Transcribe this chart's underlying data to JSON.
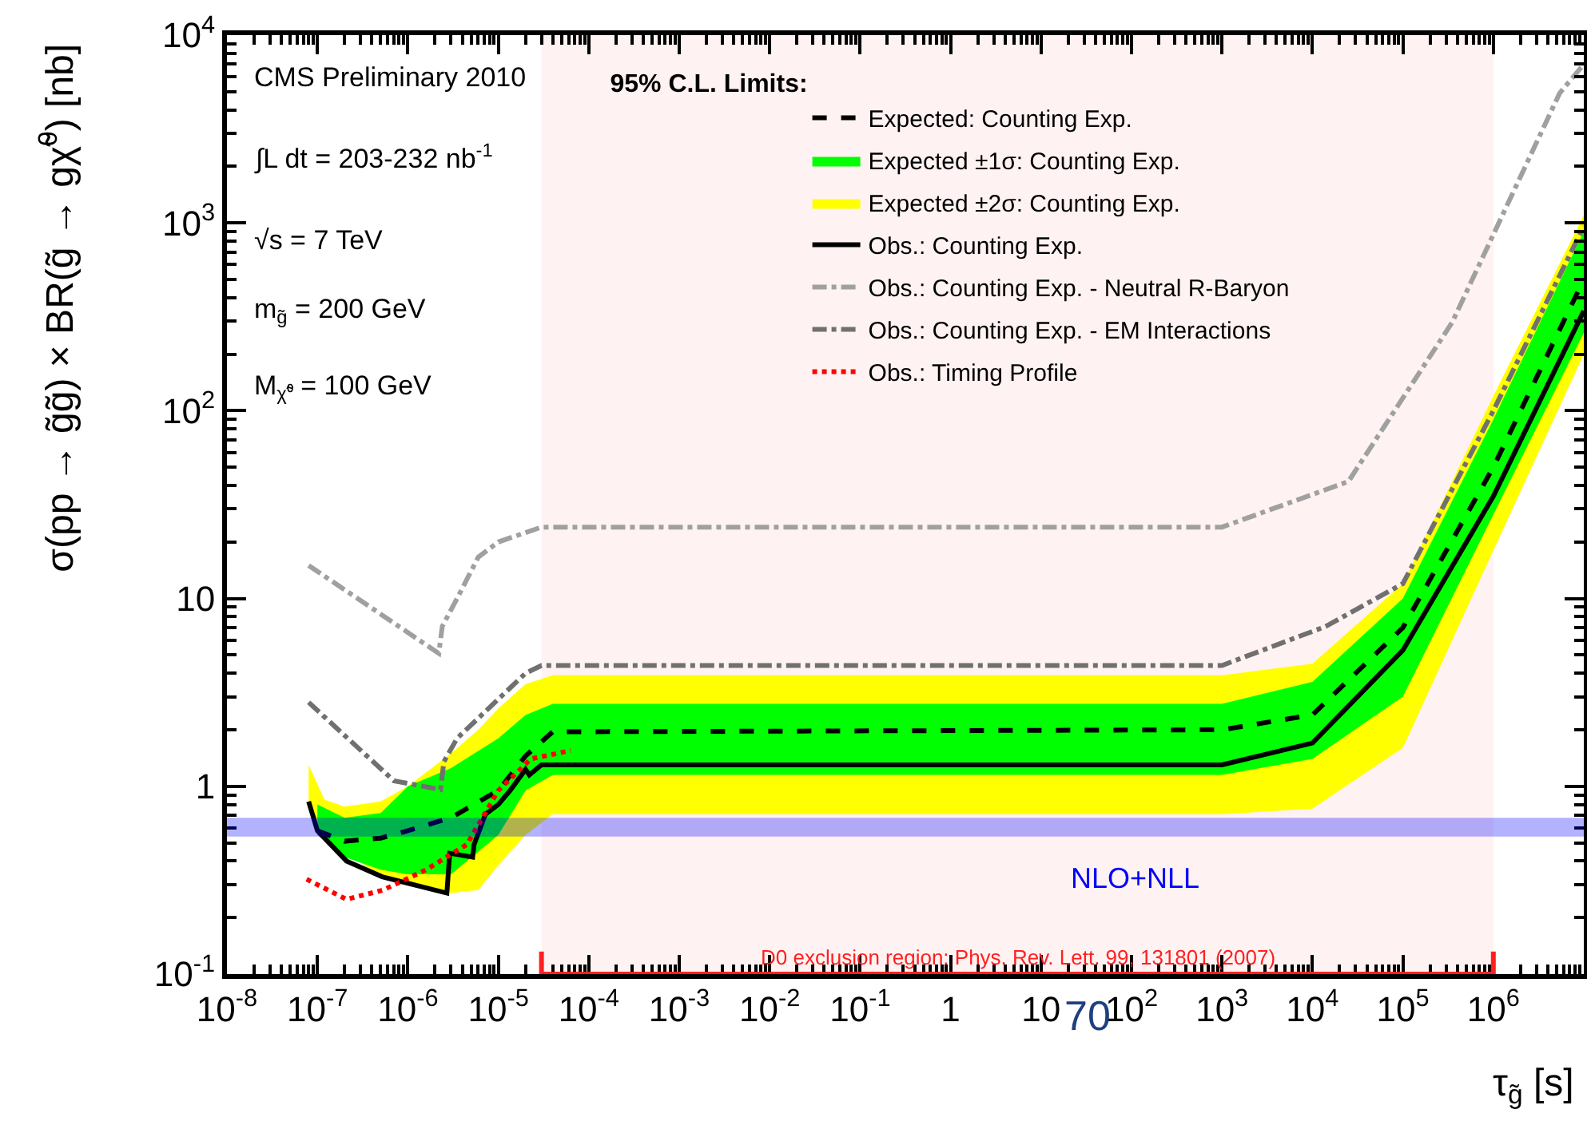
{
  "chart_data": {
    "type": "line",
    "xlabel": "τ$_{g̃}$ [s]",
    "ylabel": "σ(pp → g̃g̃) × BR(g̃ → gχ̃$^{0}$) [nb]",
    "legend_title": "95% C.L. Limits:",
    "log": "xy",
    "grid": false,
    "legend": "top",
    "marker": "none",
    "xlim": [
      1e-08,
      10000000.0
    ],
    "ylim": [
      0.1,
      10000
    ],
    "xticks": [
      {
        "value": 1e-08,
        "label": "10$^{-8}$"
      },
      {
        "value": 1e-07,
        "label": "10$^{-7}$"
      },
      {
        "value": 1e-06,
        "label": "10$^{-6}$"
      },
      {
        "value": 1e-05,
        "label": "10$^{-5}$"
      },
      {
        "value": 0.0001,
        "label": "10$^{-4}$"
      },
      {
        "value": 0.001,
        "label": "10$^{-3}$"
      },
      {
        "value": 0.01,
        "label": "10$^{-2}$"
      },
      {
        "value": 0.1,
        "label": "10$^{-1}$"
      },
      1,
      10,
      {
        "value": 100,
        "label": "10$^{2}$"
      },
      {
        "value": 1000,
        "label": "10$^{3}$"
      },
      {
        "value": 10000,
        "label": "10$^{4}$"
      },
      {
        "value": 100000,
        "label": "10$^{5}$"
      },
      {
        "value": 1000000,
        "label": "10$^{6}$"
      }
    ],
    "yticks": [
      {
        "value": 0.1,
        "label": "10$^{-1}$"
      },
      1,
      10,
      {
        "value": 100,
        "label": "10$^{2}$"
      },
      {
        "value": 1000,
        "label": "10$^{3}$"
      },
      {
        "value": 10000,
        "label": "10$^{4}$"
      }
    ],
    "series": [
      {
        "name": "Expected: Counting Exp.",
        "line_style": "dashed",
        "color": "#000000",
        "x": [
          1e-07,
          2e-07,
          5e-07,
          1e-06,
          3e-06,
          1e-05,
          2e-05,
          4e-05,
          1000,
          10000,
          100000,
          1000000,
          10000000
        ],
        "values": [
          0.58,
          0.51,
          0.53,
          0.58,
          0.68,
          0.95,
          1.45,
          1.95,
          2.0,
          2.4,
          7,
          50,
          500
        ]
      },
      {
        "name": "Expected ±1σ: Counting Exp.",
        "color": "#00ff00",
        "x": [
          1e-07,
          2e-07,
          5e-07,
          1e-06,
          3e-06,
          1e-05,
          2e-05,
          4e-05,
          1000,
          10000,
          100000,
          1000000,
          10000000
        ],
        "values": [
          null,
          null,
          null,
          null,
          null,
          null,
          null,
          null,
          null,
          null,
          null,
          null,
          null
        ],
        "lower": [
          0.55,
          0.42,
          0.36,
          0.34,
          0.34,
          0.55,
          0.95,
          1.15,
          1.15,
          1.4,
          3.0,
          28,
          260
        ],
        "upper": [
          0.8,
          0.68,
          0.72,
          1.0,
          1.25,
          1.8,
          2.4,
          2.75,
          2.75,
          3.6,
          10,
          90,
          900
        ]
      },
      {
        "name": "Expected ±2σ: Counting Exp.",
        "color": "#ffff00",
        "x": [
          8e-08,
          1.2e-07,
          2e-07,
          5e-07,
          1e-06,
          3e-06,
          6e-06,
          1e-05,
          2e-05,
          4e-05,
          1000,
          10000,
          100000,
          1000000,
          10000000
        ],
        "values": [
          null,
          null,
          null,
          null,
          null,
          null,
          null,
          null,
          null,
          null,
          null,
          null,
          null,
          null,
          null
        ],
        "lower": [
          0.75,
          0.6,
          0.45,
          0.33,
          0.3,
          0.27,
          0.28,
          0.38,
          0.55,
          0.71,
          0.71,
          0.76,
          1.6,
          18,
          200
        ],
        "upper": [
          1.3,
          0.85,
          0.78,
          0.83,
          1.0,
          1.5,
          2.0,
          2.6,
          3.5,
          3.9,
          3.9,
          4.5,
          12,
          120,
          1100
        ]
      },
      {
        "name": "Obs.: Counting Exp.",
        "line_style": "solid",
        "color": "#000000",
        "x": [
          8e-08,
          1e-07,
          2.1e-07,
          5.2e-07,
          2.7e-06,
          2.9e-06,
          5.2e-06,
          5.4e-06,
          7.2e-06,
          1e-05,
          1.35e-05,
          2e-05,
          2.2e-05,
          3e-05,
          1000,
          10000,
          100000,
          1000000,
          10000000
        ],
        "values": [
          0.83,
          0.58,
          0.4,
          0.33,
          0.27,
          0.44,
          0.42,
          0.49,
          0.71,
          0.8,
          0.95,
          1.23,
          1.15,
          1.3,
          1.3,
          1.7,
          5.3,
          35,
          340
        ]
      },
      {
        "name": "Obs.: Counting Exp. - Neutral R-Baryon",
        "line_style": "dashdot",
        "color": "#a0a0a0",
        "x": [
          8e-08,
          2.2e-06,
          2.4e-06,
          3.5e-06,
          6e-06,
          1e-05,
          3e-05,
          1000,
          25000,
          350000,
          5400000,
          10000000
        ],
        "values": [
          15,
          5.1,
          7.1,
          10,
          16.6,
          20,
          24,
          24,
          42,
          295,
          4900,
          7000
        ]
      },
      {
        "name": "Obs.: Counting Exp. - EM Interactions",
        "line_style": "dashdot",
        "color": "#707070",
        "x": [
          8e-08,
          7e-07,
          2.3e-06,
          2.5e-06,
          3.5e-06,
          2e-05,
          3e-05,
          1000,
          14000,
          100000,
          1000000,
          10000000
        ],
        "values": [
          2.8,
          1.07,
          0.96,
          1.35,
          1.8,
          4.0,
          4.4,
          4.4,
          7.1,
          12,
          100,
          960
        ]
      },
      {
        "name": "Obs.: Timing Profile",
        "line_style": "dotted",
        "color": "#ff0000",
        "x": [
          7.6e-08,
          2.1e-07,
          5.3e-07,
          1.6e-06,
          4.5e-06,
          1e-05,
          2.3e-05,
          6.3e-05
        ],
        "values": [
          0.32,
          0.25,
          0.28,
          0.36,
          0.49,
          0.95,
          1.4,
          1.55
        ]
      }
    ],
    "bands": [
      {
        "axis": "y",
        "from": 0.54,
        "to": 0.68,
        "label": "NLO+NLL",
        "color": "#0000ff"
      },
      {
        "axis": "x",
        "from": 3e-05,
        "to": 1000000,
        "label": "D0 exclusion region: Phys. Rev. Lett. 99, 131801 (2007)",
        "color": "#ff2020"
      }
    ],
    "annotations": [
      "CMS Preliminary 2010",
      "∫L dt = 203-232 nb$^{-1}$",
      "√s = 7 TeV",
      "m$_{g̃}$ = 200 GeV",
      "M$_{χ̃⁰}$ = 100 GeV",
      "70"
    ]
  }
}
